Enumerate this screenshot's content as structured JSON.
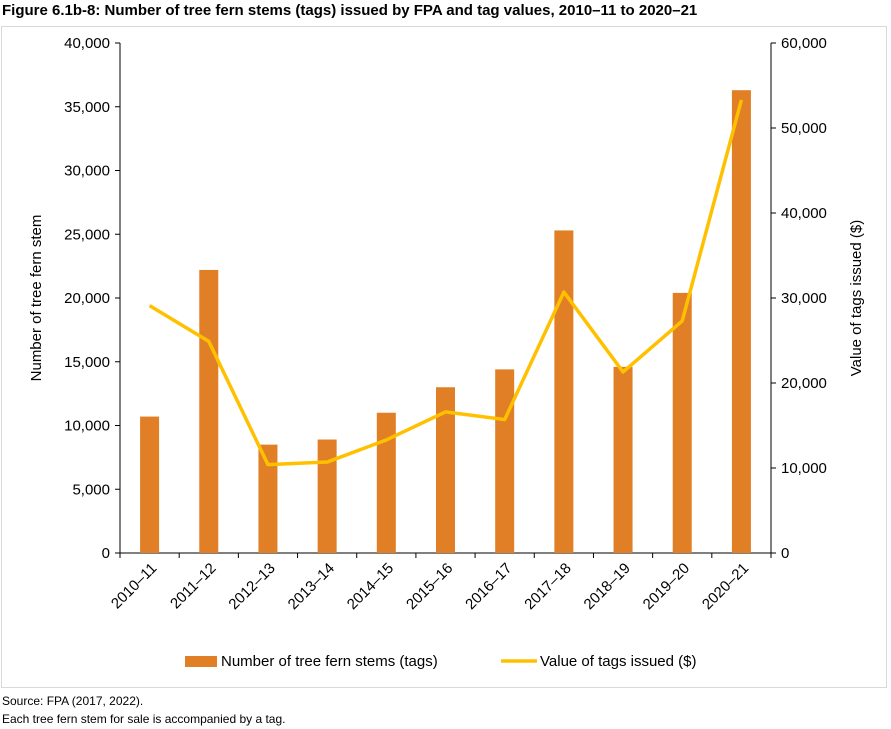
{
  "title": "Figure 6.1b-8: Number of tree fern stems (tags) issued by FPA and tag values, 2010–11 to 2020–21",
  "footnotes": [
    "Source: FPA (2017, 2022).",
    "Each tree fern stem for sale is accompanied by a tag."
  ],
  "chart_data": {
    "type": "bar+line",
    "title": "Figure 6.1b-8: Number of tree fern stems (tags) issued by FPA and tag values, 2010–11 to 2020–21",
    "categories": [
      "2010–11",
      "2011–12",
      "2012–13",
      "2013–14",
      "2014–15",
      "2015–16",
      "2016–17",
      "2017–18",
      "2018–19",
      "2019–20",
      "2020–21"
    ],
    "ylabel_left": "Number of tree fern stem",
    "ylabel_right": "Value of tags issued ($)",
    "ylim_left": [
      0,
      40000
    ],
    "ylim_right": [
      0,
      60000
    ],
    "yticks_left": [
      "0",
      "5,000",
      "10,000",
      "15,000",
      "20,000",
      "25,000",
      "30,000",
      "35,000",
      "40,000"
    ],
    "yticks_right": [
      "0",
      "10,000",
      "20,000",
      "30,000",
      "40,000",
      "50,000",
      "60,000"
    ],
    "grid": false,
    "legend_position": "bottom",
    "series": [
      {
        "name": "Number of tree fern stems (tags)",
        "type": "bar",
        "axis": "left",
        "color": "#E07F26",
        "values": [
          10700,
          22200,
          8500,
          8900,
          11000,
          13000,
          14400,
          25300,
          14600,
          20400,
          36300
        ]
      },
      {
        "name": "Value of tags issued ($)",
        "type": "line",
        "axis": "right",
        "color": "#FFC000",
        "values": [
          29100,
          24900,
          10400,
          10700,
          13300,
          16600,
          15700,
          30700,
          21300,
          27300,
          53300
        ]
      }
    ]
  }
}
